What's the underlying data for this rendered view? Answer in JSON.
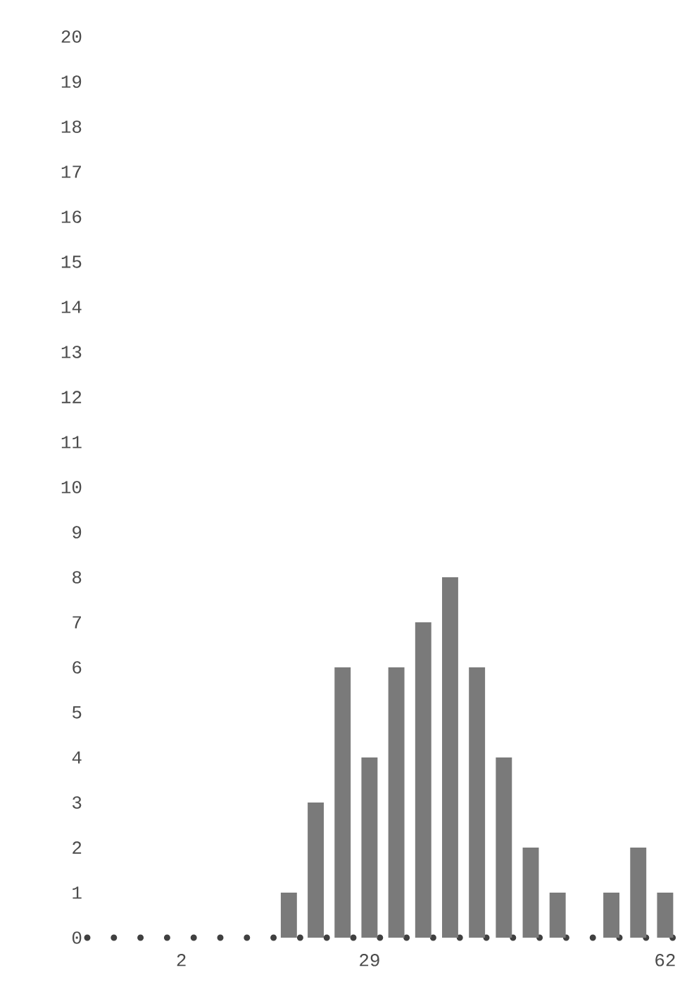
{
  "chart_data": {
    "type": "bar",
    "categories": [
      null,
      null,
      null,
      "2",
      null,
      null,
      null,
      null,
      null,
      null,
      "29",
      null,
      null,
      null,
      null,
      null,
      null,
      null,
      null,
      null,
      null,
      "62"
    ],
    "values": [
      0,
      0,
      0,
      0,
      0,
      0,
      0,
      1,
      3,
      6,
      4,
      6,
      7,
      8,
      6,
      4,
      2,
      1,
      0,
      1,
      2,
      1
    ],
    "color": "#7a7a7a",
    "ylim": [
      0,
      20
    ],
    "yticks": [
      0,
      1,
      2,
      3,
      4,
      5,
      6,
      7,
      8,
      9,
      10,
      11,
      12,
      13,
      14,
      15,
      16,
      17,
      18,
      19,
      20
    ]
  }
}
